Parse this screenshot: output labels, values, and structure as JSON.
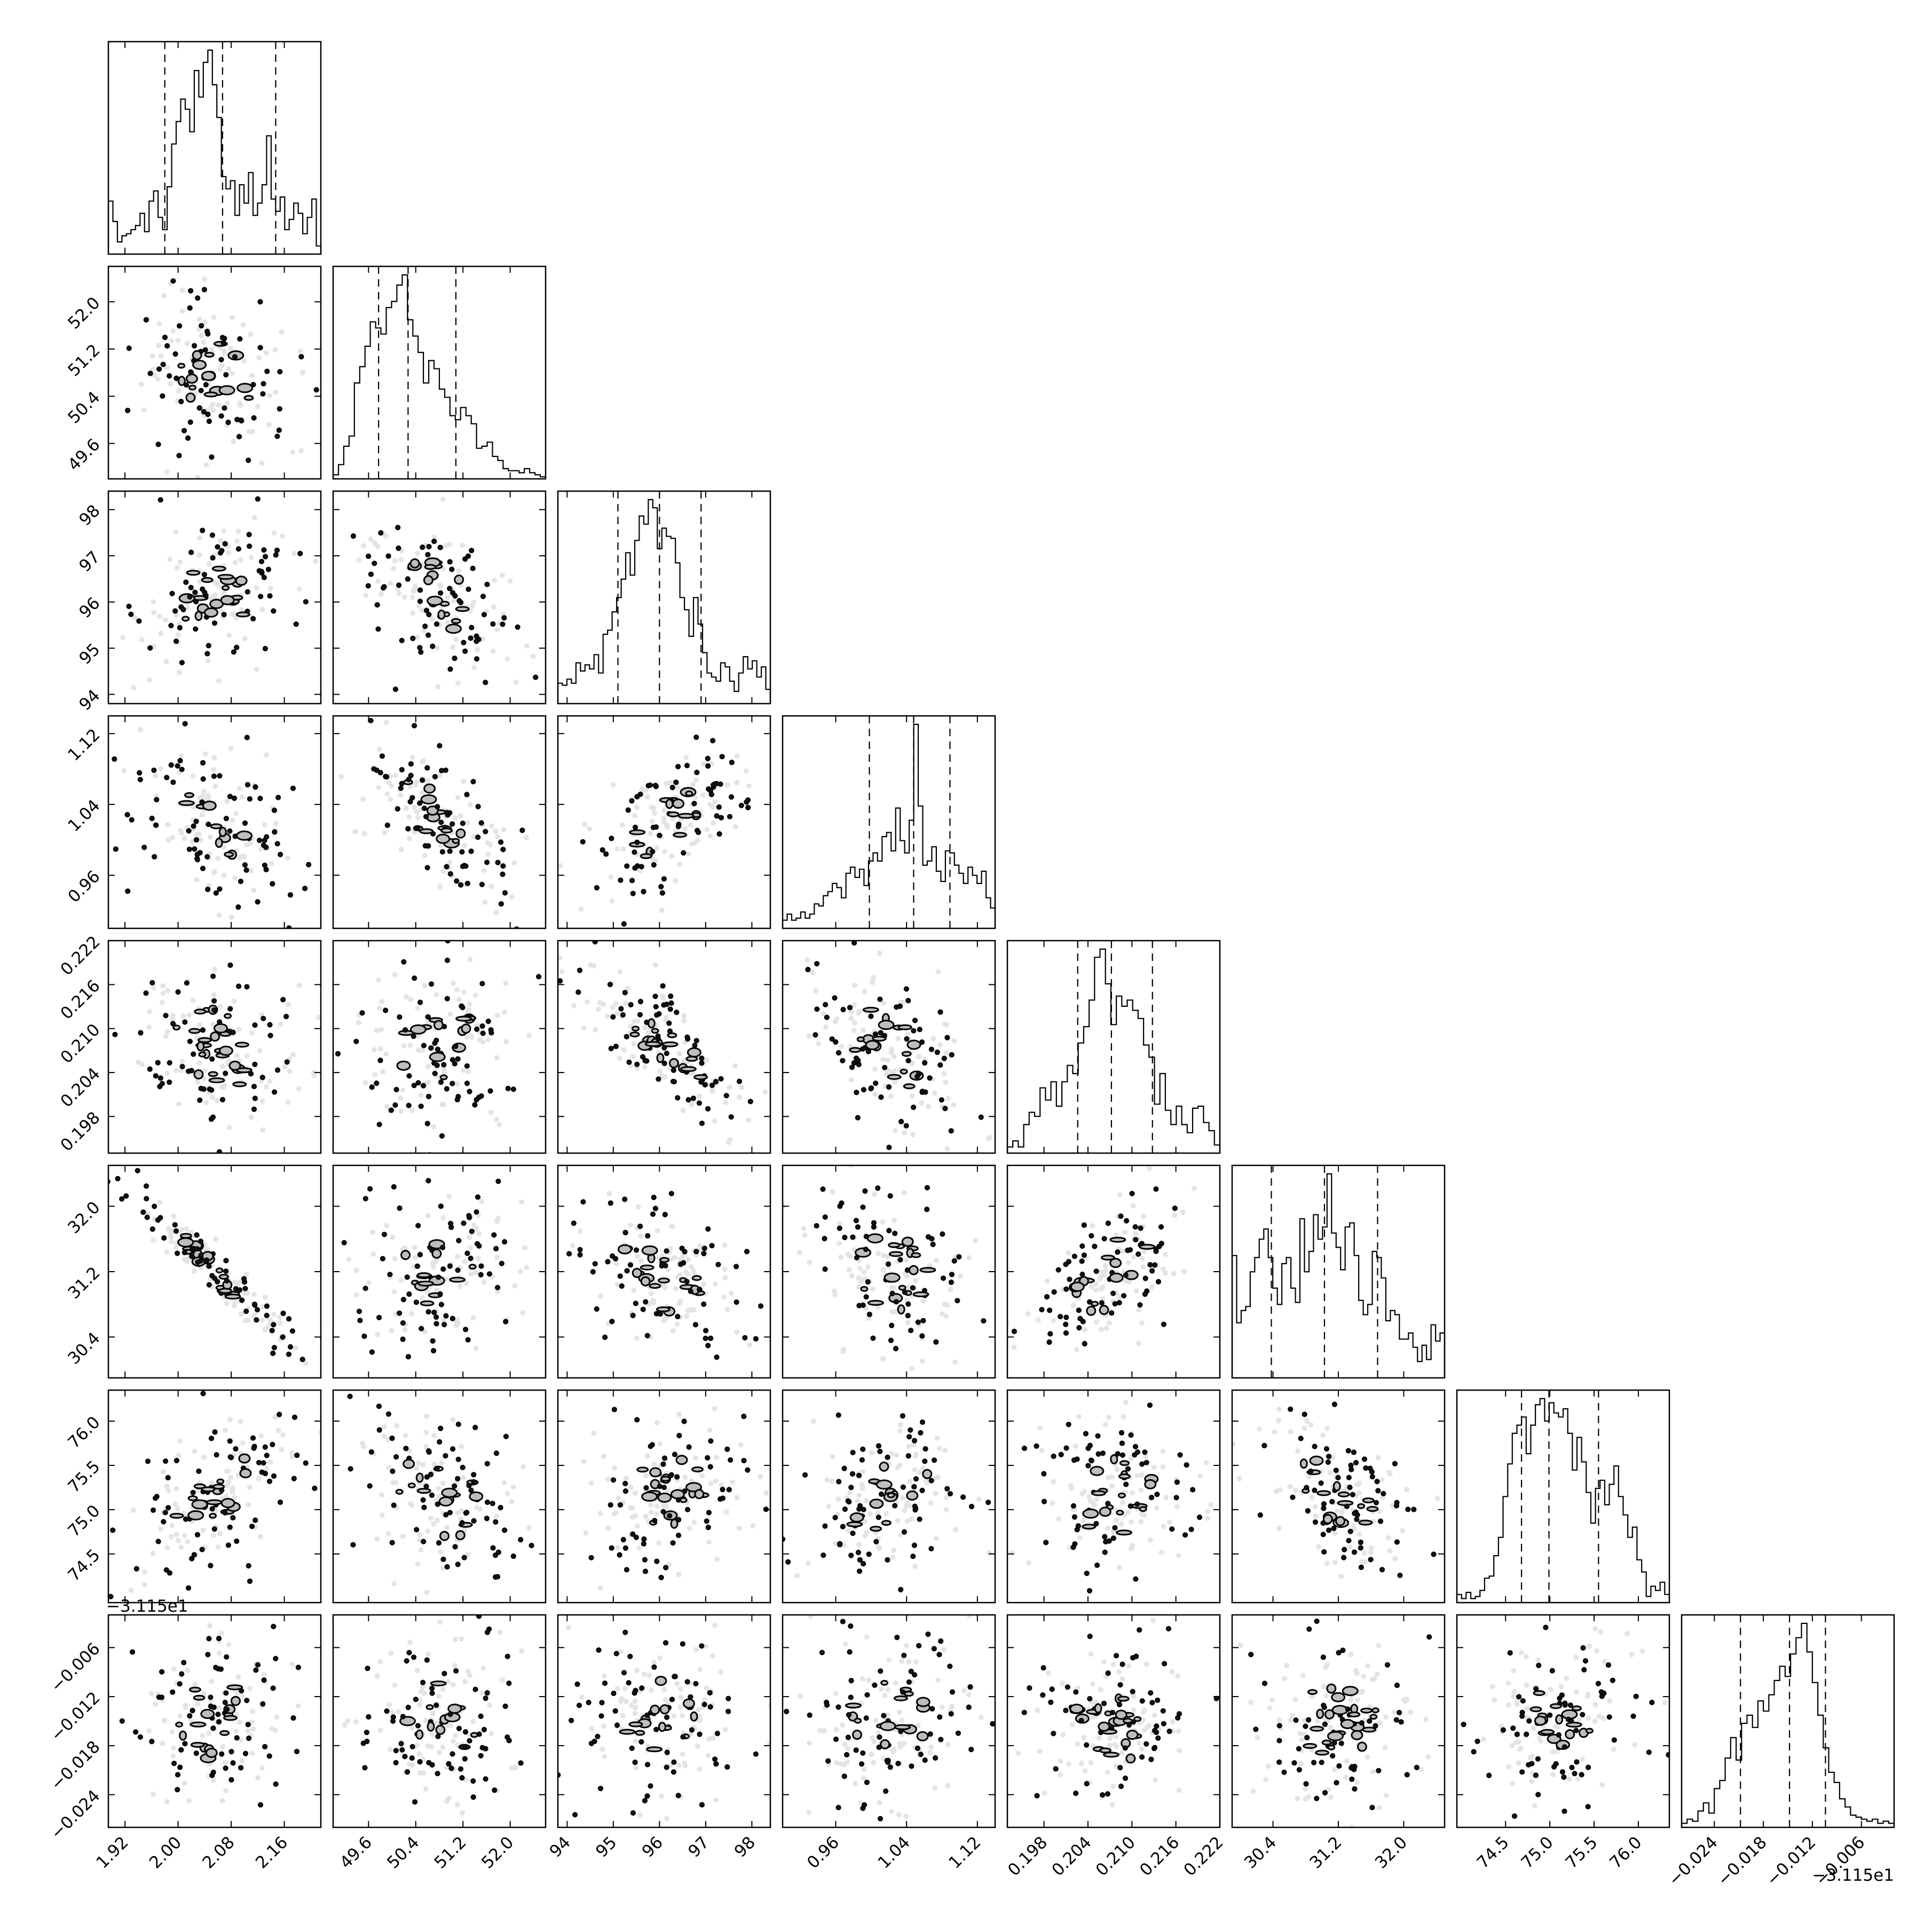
{
  "chart_data": {
    "type": "corner",
    "title": "",
    "n_params": 8,
    "quantiles": [
      0.16,
      0.5,
      0.84
    ],
    "parameters": [
      {
        "label": "",
        "range": [
          1.895,
          2.215
        ],
        "ticks": [
          "1.92",
          "2.00",
          "2.08",
          "2.16"
        ],
        "tick_values": [
          1.92,
          2.0,
          2.08,
          2.16
        ],
        "quantile_values": [
          1.98,
          2.067,
          2.147
        ],
        "hist": [
          0.26,
          0.16,
          0.06,
          0.09,
          0.1,
          0.12,
          0.14,
          0.2,
          0.11,
          0.26,
          0.31,
          0.18,
          0.12,
          0.33,
          0.54,
          0.65,
          0.76,
          0.71,
          0.6,
          0.9,
          0.77,
          0.94,
          1.0,
          0.83,
          0.67,
          0.38,
          0.32,
          0.36,
          0.19,
          0.34,
          0.25,
          0.4,
          0.19,
          0.25,
          0.34,
          0.58,
          0.27,
          0.21,
          0.28,
          0.12,
          0.17,
          0.25,
          0.2,
          0.1,
          0.18,
          0.27,
          0.04
        ]
      },
      {
        "label": "",
        "range": [
          49.0,
          52.6
        ],
        "ticks": [
          "49.6",
          "50.4",
          "51.2",
          "52.0"
        ],
        "tick_values": [
          49.6,
          50.4,
          51.2,
          52.0
        ],
        "quantile_values": [
          49.77,
          50.27,
          51.08
        ],
        "hist": [
          0.02,
          0.07,
          0.16,
          0.21,
          0.47,
          0.55,
          0.65,
          0.77,
          0.74,
          0.71,
          0.84,
          0.87,
          0.95,
          1.0,
          0.78,
          0.7,
          0.62,
          0.47,
          0.58,
          0.54,
          0.44,
          0.4,
          0.31,
          0.29,
          0.35,
          0.31,
          0.27,
          0.15,
          0.16,
          0.18,
          0.11,
          0.09,
          0.05,
          0.04,
          0.04,
          0.03,
          0.05,
          0.03,
          0.02,
          0.01
        ]
      },
      {
        "label": "",
        "range": [
          93.8,
          98.4
        ],
        "ticks": [
          "94",
          "95",
          "96",
          "97",
          "98"
        ],
        "tick_values": [
          94,
          95,
          96,
          97,
          98
        ],
        "quantile_values": [
          95.1,
          96.0,
          96.9
        ],
        "hist": [
          0.1,
          0.09,
          0.12,
          0.1,
          0.2,
          0.16,
          0.19,
          0.17,
          0.24,
          0.15,
          0.34,
          0.36,
          0.45,
          0.52,
          0.61,
          0.74,
          0.63,
          0.8,
          0.92,
          0.88,
          1.0,
          0.96,
          0.76,
          0.86,
          0.82,
          0.81,
          0.69,
          0.52,
          0.46,
          0.33,
          0.52,
          0.39,
          0.25,
          0.15,
          0.13,
          0.11,
          0.2,
          0.18,
          0.11,
          0.06,
          0.15,
          0.23,
          0.17,
          0.21,
          0.13,
          0.18,
          0.07
        ]
      },
      {
        "label": "",
        "range": [
          0.9,
          1.14
        ],
        "ticks": [
          "0.96",
          "1.04",
          "1.12"
        ],
        "tick_values": [
          0.96,
          1.04,
          1.12
        ],
        "quantile_values": [
          0.998,
          1.048,
          1.089
        ],
        "hist": [
          0.04,
          0.07,
          0.04,
          0.05,
          0.08,
          0.05,
          0.07,
          0.12,
          0.11,
          0.16,
          0.18,
          0.22,
          0.2,
          0.15,
          0.27,
          0.3,
          0.25,
          0.29,
          0.21,
          0.33,
          0.37,
          0.33,
          0.45,
          0.47,
          0.38,
          0.59,
          0.43,
          0.37,
          0.53,
          1.0,
          0.6,
          0.31,
          0.33,
          0.4,
          0.28,
          0.23,
          0.38,
          0.37,
          0.31,
          0.27,
          0.22,
          0.3,
          0.26,
          0.22,
          0.28,
          0.15,
          0.1
        ]
      },
      {
        "label": "",
        "range": [
          0.193,
          0.222
        ],
        "ticks": [
          "0.198",
          "0.204",
          "0.210",
          "0.216",
          "0.222"
        ],
        "tick_values": [
          0.198,
          0.204,
          0.21,
          0.216,
          0.222
        ],
        "quantile_values": [
          0.2026,
          0.2072,
          0.2128
        ],
        "hist": [
          0.03,
          0.06,
          0.03,
          0.14,
          0.2,
          0.18,
          0.32,
          0.26,
          0.35,
          0.23,
          0.35,
          0.43,
          0.39,
          0.54,
          0.62,
          0.75,
          0.96,
          1.0,
          0.83,
          0.63,
          0.77,
          0.72,
          0.75,
          0.7,
          0.66,
          0.53,
          0.47,
          0.24,
          0.39,
          0.21,
          0.14,
          0.23,
          0.14,
          0.1,
          0.22,
          0.23,
          0.15,
          0.11,
          0.04
        ]
      },
      {
        "label": "",
        "range": [
          29.9,
          32.5
        ],
        "ticks": [
          "30.4",
          "31.2",
          "32.0"
        ],
        "tick_values": [
          30.4,
          31.2,
          32.0
        ],
        "quantile_values": [
          30.38,
          31.03,
          31.68
        ],
        "hist": [
          0.6,
          0.27,
          0.33,
          0.35,
          0.52,
          0.59,
          0.68,
          0.73,
          0.59,
          0.44,
          0.36,
          0.56,
          0.59,
          0.44,
          0.37,
          0.78,
          0.52,
          0.62,
          0.8,
          0.68,
          0.74,
          1.0,
          0.71,
          0.64,
          0.53,
          0.74,
          0.76,
          0.6,
          0.38,
          0.31,
          0.36,
          0.62,
          0.59,
          0.49,
          0.28,
          0.33,
          0.31,
          0.19,
          0.19,
          0.22,
          0.15,
          0.08,
          0.16,
          0.09,
          0.26,
          0.18,
          0.22
        ]
      },
      {
        "label": "",
        "range": [
          73.95,
          76.35
        ],
        "ticks": [
          "74.5",
          "75.0",
          "75.5",
          "76.0"
        ],
        "tick_values": [
          74.5,
          75.0,
          75.5,
          76.0
        ],
        "quantile_values": [
          74.68,
          74.99,
          75.55
        ],
        "hist": [
          0.04,
          0.02,
          0.05,
          0.02,
          0.03,
          0.06,
          0.12,
          0.13,
          0.23,
          0.32,
          0.52,
          0.68,
          0.83,
          0.87,
          0.91,
          0.73,
          0.87,
          0.97,
          1.0,
          0.89,
          0.98,
          0.93,
          0.91,
          0.95,
          0.83,
          0.65,
          0.81,
          0.69,
          0.54,
          0.39,
          0.56,
          0.6,
          0.48,
          0.58,
          0.67,
          0.52,
          0.43,
          0.32,
          0.37,
          0.21,
          0.15,
          0.03,
          0.08,
          0.06,
          0.1,
          0.04
        ]
      },
      {
        "label": "",
        "range": [
          -0.028,
          -0.002
        ],
        "ticks": [
          "−0.024",
          "−0.018",
          "−0.012",
          "−0.006"
        ],
        "tick_values": [
          -0.024,
          -0.018,
          -0.012,
          -0.006
        ],
        "quantile_values": [
          -0.0208,
          -0.0148,
          -0.0104
        ],
        "offset_text": "−3.115e1",
        "hist": [
          0.02,
          0.04,
          0.03,
          0.08,
          0.12,
          0.07,
          0.19,
          0.23,
          0.34,
          0.44,
          0.33,
          0.51,
          0.55,
          0.49,
          0.62,
          0.57,
          0.65,
          0.72,
          0.79,
          0.74,
          0.85,
          0.93,
          1.0,
          0.86,
          0.71,
          0.55,
          0.39,
          0.27,
          0.22,
          0.14,
          0.1,
          0.06,
          0.05,
          0.04,
          0.03,
          0.04,
          0.02,
          0.03,
          0.02
        ]
      }
    ],
    "correlations": {
      "1,0": -0.1,
      "2,0": 0.35,
      "2,1": -0.55,
      "3,0": -0.45,
      "3,1": -0.7,
      "3,2": 0.6,
      "4,0": -0.3,
      "4,1": 0.05,
      "4,2": -0.75,
      "4,3": -0.5,
      "5,0": -0.95,
      "5,1": 0.05,
      "5,2": -0.35,
      "5,3": -0.25,
      "5,4": 0.55,
      "6,0": 0.55,
      "6,1": -0.25,
      "6,2": 0.25,
      "6,3": 0.35,
      "6,4": 0.05,
      "6,5": -0.55,
      "7,0": -0.05,
      "7,1": 0.0,
      "7,2": 0.05,
      "7,3": 0.1,
      "7,4": -0.05,
      "7,5": 0.0,
      "7,6": 0.15
    }
  }
}
